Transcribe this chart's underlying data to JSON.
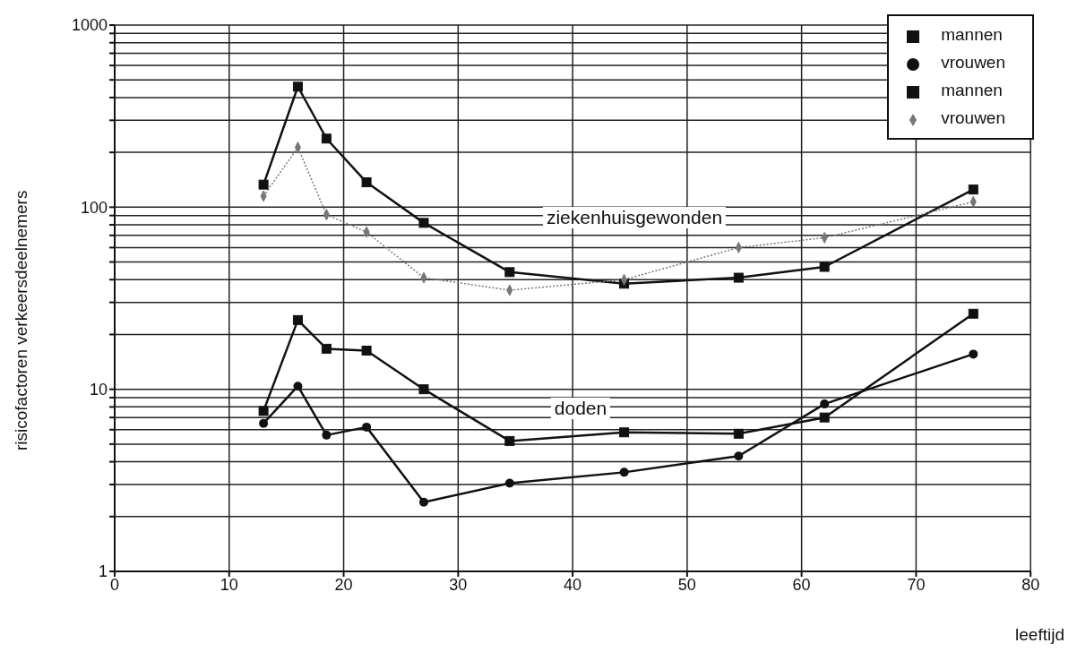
{
  "chart_data": {
    "type": "line",
    "xlabel": "leeftijd",
    "ylabel": "risicofactoren verkeersdeelnemers",
    "x": [
      13,
      16,
      18.5,
      22,
      27,
      34.5,
      44.5,
      54.5,
      62,
      75
    ],
    "series": [
      {
        "name": "mannen",
        "color": "#111111",
        "marker": "square",
        "line_style": "solid",
        "values": [
          7.6,
          24,
          16.7,
          16.3,
          10,
          5.2,
          5.8,
          5.7,
          7,
          26
        ]
      },
      {
        "name": "vrouwen",
        "color": "#111111",
        "marker": "circle",
        "line_style": "solid",
        "values": [
          6.5,
          10.4,
          5.6,
          6.2,
          2.4,
          3.05,
          3.5,
          4.3,
          8.3,
          15.6
        ]
      },
      {
        "name": "mannen",
        "color": "#111111",
        "marker": "square",
        "line_style": "solid",
        "values": [
          133,
          459,
          238,
          137,
          82,
          44,
          38,
          41,
          47,
          125
        ]
      },
      {
        "name": "vrouwen",
        "color": "#777777",
        "marker": "diamond",
        "line_style": "dotted",
        "values": [
          115,
          213,
          91,
          73,
          41,
          35,
          40,
          60,
          68,
          107
        ]
      }
    ],
    "annotations": [
      "ziekenhuisgewonden",
      "doden"
    ],
    "xlim": [
      0,
      80
    ],
    "xticks": [
      0,
      10,
      20,
      30,
      40,
      50,
      60,
      70,
      80
    ],
    "log": true,
    "ylim": [
      1,
      1000
    ],
    "yticks": [
      1,
      {
        "value": 2,
        "label": null
      },
      {
        "value": 3,
        "label": null
      },
      {
        "value": 4,
        "label": null
      },
      {
        "value": 5,
        "label": null
      },
      {
        "value": 6,
        "label": null
      },
      {
        "value": 7,
        "label": null
      },
      {
        "value": 8,
        "label": null
      },
      {
        "value": 9,
        "label": null
      },
      10,
      {
        "value": 20,
        "label": null
      },
      {
        "value": 30,
        "label": null
      },
      {
        "value": 40,
        "label": null
      },
      {
        "value": 50,
        "label": null
      },
      {
        "value": 60,
        "label": null
      },
      {
        "value": 70,
        "label": null
      },
      {
        "value": 80,
        "label": null
      },
      {
        "value": 90,
        "label": null
      },
      100,
      {
        "value": 200,
        "label": null
      },
      {
        "value": 300,
        "label": null
      },
      {
        "value": 400,
        "label": null
      },
      {
        "value": 500,
        "label": null
      },
      {
        "value": 600,
        "label": null
      },
      {
        "value": 700,
        "label": null
      },
      {
        "value": 800,
        "label": null
      },
      {
        "value": 900,
        "label": null
      },
      1000
    ],
    "grid": true,
    "legend": "top right"
  }
}
